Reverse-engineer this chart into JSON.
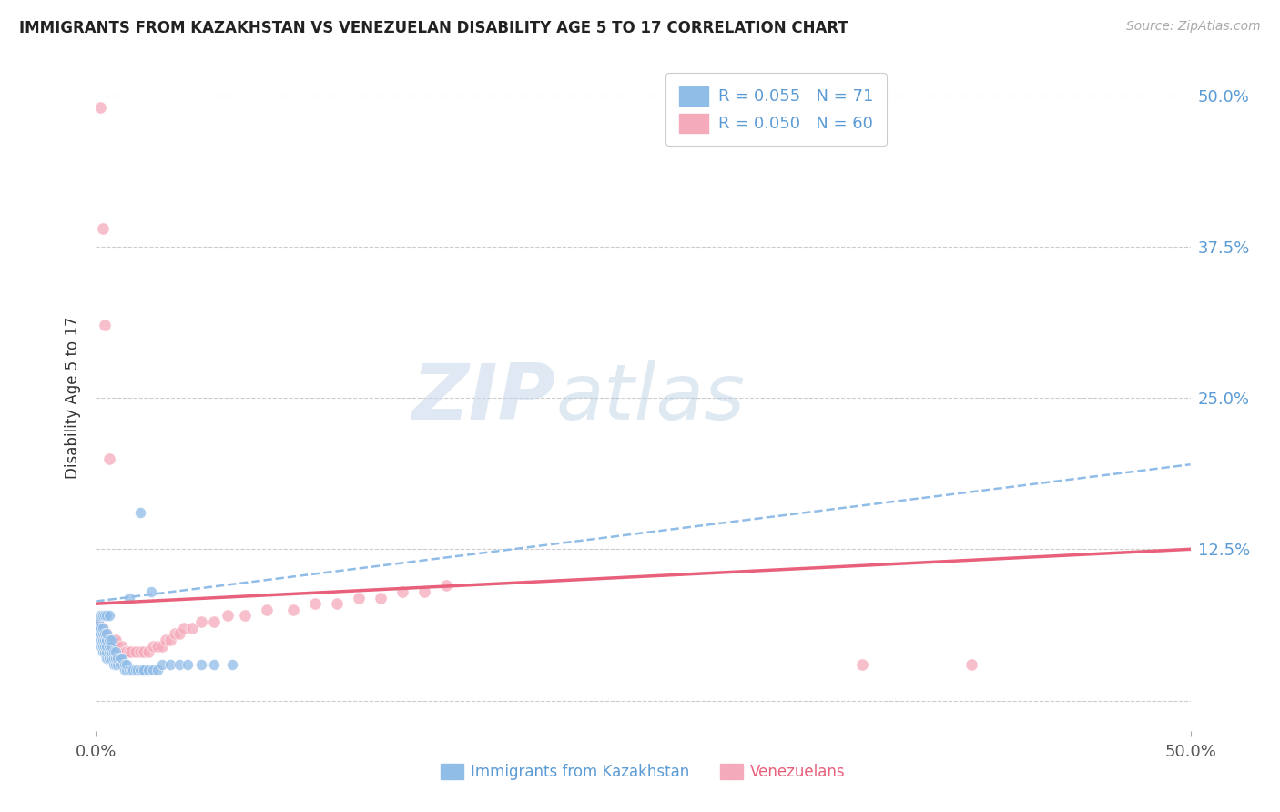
{
  "title": "IMMIGRANTS FROM KAZAKHSTAN VS VENEZUELAN DISABILITY AGE 5 TO 17 CORRELATION CHART",
  "source": "Source: ZipAtlas.com",
  "ylabel": "Disability Age 5 to 17",
  "xlim": [
    0,
    0.5
  ],
  "ylim": [
    -0.025,
    0.525
  ],
  "yticks": [
    0.0,
    0.125,
    0.25,
    0.375,
    0.5
  ],
  "ytick_labels": [
    "",
    "12.5%",
    "25.0%",
    "37.5%",
    "50.0%"
  ],
  "xtick_vals": [
    0.0,
    0.5
  ],
  "xtick_labels": [
    "0.0%",
    "50.0%"
  ],
  "grid_color": "#cccccc",
  "bg_color": "#ffffff",
  "color_kaz": "#90bce8",
  "color_ven": "#f5aabb",
  "trend_color_kaz": "#90bce8",
  "trend_color_ven": "#e8607a",
  "label_color": "#5b9bd5",
  "watermark": "ZIPatlas",
  "legend_r1": "R = 0.055",
  "legend_n1": "N = 71",
  "legend_r2": "R = 0.050",
  "legend_n2": "N = 60",
  "kaz_label": "Immigrants from Kazakhstan",
  "ven_label": "Venezuelans",
  "kaz_x": [
    0.001,
    0.001,
    0.001,
    0.002,
    0.002,
    0.002,
    0.002,
    0.003,
    0.003,
    0.003,
    0.003,
    0.003,
    0.004,
    0.004,
    0.004,
    0.004,
    0.005,
    0.005,
    0.005,
    0.005,
    0.005,
    0.006,
    0.006,
    0.006,
    0.006,
    0.007,
    0.007,
    0.007,
    0.007,
    0.008,
    0.008,
    0.008,
    0.009,
    0.009,
    0.009,
    0.01,
    0.01,
    0.011,
    0.011,
    0.012,
    0.012,
    0.013,
    0.013,
    0.014,
    0.014,
    0.015,
    0.016,
    0.017,
    0.018,
    0.019,
    0.02,
    0.021,
    0.022,
    0.024,
    0.026,
    0.028,
    0.03,
    0.034,
    0.038,
    0.042,
    0.048,
    0.054,
    0.062,
    0.002,
    0.003,
    0.004,
    0.005,
    0.006,
    0.02,
    0.025,
    0.015
  ],
  "kaz_y": [
    0.055,
    0.06,
    0.065,
    0.045,
    0.05,
    0.055,
    0.06,
    0.04,
    0.045,
    0.05,
    0.055,
    0.06,
    0.04,
    0.045,
    0.05,
    0.055,
    0.035,
    0.04,
    0.045,
    0.05,
    0.055,
    0.035,
    0.04,
    0.045,
    0.05,
    0.035,
    0.04,
    0.045,
    0.05,
    0.03,
    0.035,
    0.04,
    0.03,
    0.035,
    0.04,
    0.03,
    0.035,
    0.03,
    0.035,
    0.03,
    0.035,
    0.025,
    0.03,
    0.025,
    0.03,
    0.025,
    0.025,
    0.025,
    0.025,
    0.025,
    0.025,
    0.025,
    0.025,
    0.025,
    0.025,
    0.025,
    0.03,
    0.03,
    0.03,
    0.03,
    0.03,
    0.03,
    0.03,
    0.07,
    0.07,
    0.07,
    0.07,
    0.07,
    0.155,
    0.09,
    0.085
  ],
  "ven_x": [
    0.001,
    0.001,
    0.002,
    0.002,
    0.003,
    0.003,
    0.004,
    0.004,
    0.005,
    0.005,
    0.005,
    0.006,
    0.006,
    0.007,
    0.007,
    0.008,
    0.008,
    0.009,
    0.009,
    0.01,
    0.01,
    0.011,
    0.012,
    0.012,
    0.013,
    0.014,
    0.015,
    0.016,
    0.018,
    0.02,
    0.022,
    0.024,
    0.026,
    0.028,
    0.03,
    0.032,
    0.034,
    0.036,
    0.038,
    0.04,
    0.044,
    0.048,
    0.054,
    0.06,
    0.068,
    0.078,
    0.09,
    0.1,
    0.11,
    0.12,
    0.13,
    0.14,
    0.15,
    0.16,
    0.002,
    0.003,
    0.004,
    0.006,
    0.4,
    0.35
  ],
  "ven_y": [
    0.06,
    0.065,
    0.055,
    0.06,
    0.055,
    0.06,
    0.05,
    0.055,
    0.045,
    0.05,
    0.055,
    0.045,
    0.05,
    0.045,
    0.05,
    0.045,
    0.05,
    0.045,
    0.05,
    0.04,
    0.045,
    0.04,
    0.04,
    0.045,
    0.04,
    0.04,
    0.04,
    0.04,
    0.04,
    0.04,
    0.04,
    0.04,
    0.045,
    0.045,
    0.045,
    0.05,
    0.05,
    0.055,
    0.055,
    0.06,
    0.06,
    0.065,
    0.065,
    0.07,
    0.07,
    0.075,
    0.075,
    0.08,
    0.08,
    0.085,
    0.085,
    0.09,
    0.09,
    0.095,
    0.49,
    0.39,
    0.31,
    0.2,
    0.03,
    0.03
  ],
  "trend_kaz_x0": 0.0,
  "trend_kaz_x1": 0.5,
  "trend_kaz_y0": 0.082,
  "trend_kaz_y1": 0.195,
  "trend_ven_x0": 0.0,
  "trend_ven_x1": 0.5,
  "trend_ven_y0": 0.08,
  "trend_ven_y1": 0.125
}
